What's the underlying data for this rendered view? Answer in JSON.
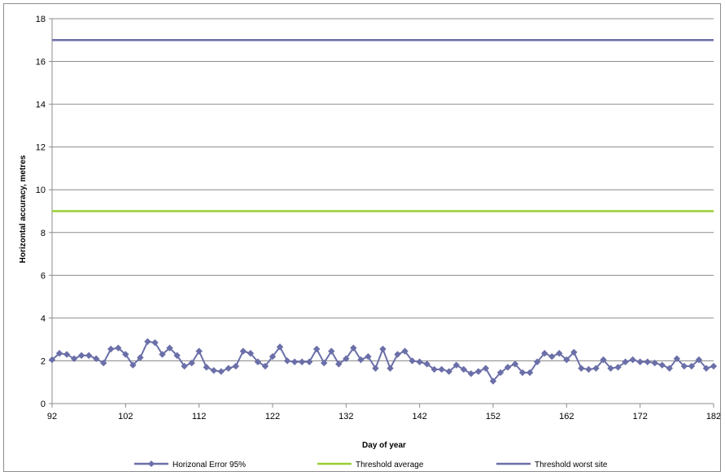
{
  "chart_data": {
    "type": "line",
    "xlabel": "Day of year",
    "ylabel": "Horizontal accuracy, metres",
    "xlim": [
      92,
      182
    ],
    "ylim": [
      0,
      18
    ],
    "x_ticks": [
      92,
      102,
      112,
      122,
      132,
      142,
      152,
      162,
      172,
      182
    ],
    "y_ticks": [
      0,
      2,
      4,
      6,
      8,
      10,
      12,
      14,
      16,
      18
    ],
    "grid": "horizontal",
    "legend_position": "bottom",
    "series": [
      {
        "name": "Horizonal Error 95%",
        "color": "#6b6fa8",
        "marker": "diamond",
        "x": [
          92,
          93,
          94,
          95,
          96,
          97,
          98,
          99,
          100,
          101,
          102,
          103,
          104,
          105,
          106,
          107,
          108,
          109,
          110,
          111,
          112,
          113,
          114,
          115,
          116,
          117,
          118,
          119,
          120,
          121,
          122,
          123,
          124,
          125,
          126,
          127,
          128,
          129,
          130,
          131,
          132,
          133,
          134,
          135,
          136,
          137,
          138,
          139,
          140,
          141,
          142,
          143,
          144,
          145,
          146,
          147,
          148,
          149,
          150,
          151,
          152,
          153,
          154,
          155,
          156,
          157,
          158,
          159,
          160,
          161,
          162,
          163,
          164,
          165,
          166,
          167,
          168,
          169,
          170,
          171,
          172,
          173,
          174,
          175,
          176,
          177,
          178,
          179,
          180,
          181,
          182
        ],
        "y": [
          2.05,
          2.35,
          2.3,
          2.1,
          2.25,
          2.25,
          2.1,
          1.9,
          2.55,
          2.6,
          2.3,
          1.8,
          2.15,
          2.9,
          2.85,
          2.3,
          2.6,
          2.25,
          1.75,
          1.9,
          2.45,
          1.7,
          1.55,
          1.5,
          1.65,
          1.75,
          2.45,
          2.35,
          1.95,
          1.75,
          2.2,
          2.65,
          2.0,
          1.95,
          1.95,
          1.95,
          2.55,
          1.9,
          2.45,
          1.85,
          2.1,
          2.6,
          2.05,
          2.2,
          1.65,
          2.55,
          1.65,
          2.3,
          2.45,
          2.0,
          1.95,
          1.85,
          1.6,
          1.6,
          1.5,
          1.8,
          1.6,
          1.4,
          1.5,
          1.65,
          1.05,
          1.45,
          1.7,
          1.85,
          1.45,
          1.45,
          1.95,
          2.35,
          2.2,
          2.35,
          2.05,
          2.4,
          1.65,
          1.6,
          1.65,
          2.05,
          1.65,
          1.7,
          1.95,
          2.05,
          1.95,
          1.95,
          1.9,
          1.8,
          1.65,
          2.1,
          1.75,
          1.75,
          2.05,
          1.65,
          1.75
        ]
      },
      {
        "name": "Threshold average",
        "color": "#9acd32",
        "x": [
          92,
          182
        ],
        "y": [
          9,
          9
        ]
      },
      {
        "name": "Threshold worst site",
        "color": "#6b6fa8",
        "x": [
          92,
          182
        ],
        "y": [
          17,
          17
        ]
      }
    ]
  }
}
